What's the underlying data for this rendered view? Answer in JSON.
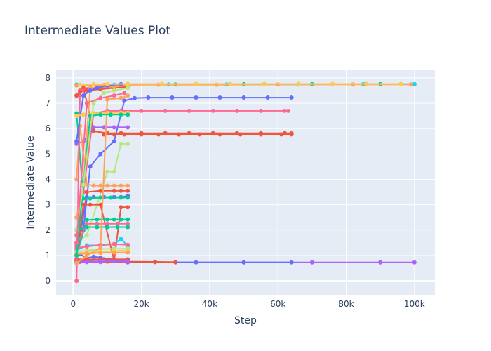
{
  "chart_data": {
    "type": "line",
    "title": "Intermediate Values Plot",
    "xlabel": "Step",
    "ylabel": "Intermediate Value",
    "xlim": [
      -5000,
      106000
    ],
    "ylim": [
      -0.55,
      8.3
    ],
    "x_ticks": [
      0,
      20000,
      40000,
      60000,
      80000,
      100000
    ],
    "x_tick_labels": [
      "0",
      "20k",
      "40k",
      "60k",
      "80k",
      "100k"
    ],
    "y_ticks": [
      0,
      1,
      2,
      3,
      4,
      5,
      6,
      7,
      8
    ],
    "y_tick_labels": [
      "0",
      "1",
      "2",
      "3",
      "4",
      "5",
      "6",
      "7",
      "8"
    ],
    "grid": true,
    "legend": "none",
    "series": [
      {
        "color": "#00cc96",
        "x": [
          1000,
          10000,
          30000,
          50000,
          70000,
          90000,
          100000
        ],
        "y": [
          7.73,
          7.74,
          7.74,
          7.75,
          7.75,
          7.75,
          7.75
        ]
      },
      {
        "color": "#19d3f3",
        "x": [
          1000,
          12000,
          28000,
          45000,
          66000,
          85000,
          100000
        ],
        "y": [
          7.72,
          7.73,
          7.74,
          7.74,
          7.74,
          7.75,
          7.75
        ]
      },
      {
        "color": "#FFA15A",
        "x": [
          1000,
          9000,
          25000,
          42000,
          60000,
          82000,
          99000
        ],
        "y": [
          7.7,
          7.72,
          7.73,
          7.73,
          7.74,
          7.74,
          7.74
        ]
      },
      {
        "color": "#ab63fa",
        "x": [
          1000,
          2000,
          4000,
          8000,
          16000,
          30000,
          50000,
          70000,
          90000,
          100000
        ],
        "y": [
          0.8,
          0.75,
          0.74,
          0.74,
          0.73,
          0.73,
          0.73,
          0.73,
          0.73,
          0.73
        ]
      },
      {
        "color": "#636efa",
        "x": [
          1000,
          2000,
          4000,
          6000,
          8000,
          16000,
          24000,
          36000,
          50000,
          64000
        ],
        "y": [
          1.0,
          1.05,
          0.9,
          0.95,
          0.92,
          0.75,
          0.74,
          0.73,
          0.73,
          0.73
        ]
      },
      {
        "color": "#EF553B",
        "x": [
          1000,
          4000,
          10000,
          16000,
          24000,
          30000
        ],
        "y": [
          0.8,
          0.78,
          0.76,
          0.76,
          0.75,
          0.74
        ]
      },
      {
        "color": "#636efa",
        "x": [
          1000,
          3000,
          5000,
          8000,
          12000,
          15000,
          18000,
          22000,
          29000,
          36000,
          43000,
          50000,
          57000,
          64000
        ],
        "y": [
          1.0,
          2.0,
          4.5,
          5.0,
          5.5,
          7.1,
          7.2,
          7.22,
          7.22,
          7.22,
          7.22,
          7.22,
          7.22,
          7.22
        ]
      },
      {
        "color": "#FF6692",
        "x": [
          1000,
          3000,
          6000,
          10000,
          14000,
          20000,
          27000,
          34000,
          41000,
          48000,
          55000,
          62000,
          63000
        ],
        "y": [
          1.8,
          3.5,
          6.6,
          6.7,
          6.7,
          6.7,
          6.7,
          6.7,
          6.7,
          6.7,
          6.7,
          6.7,
          6.7
        ]
      },
      {
        "color": "#EF553B",
        "x": [
          1000,
          3000,
          6000,
          10000,
          14000,
          20000,
          27000,
          34000,
          41000,
          48000,
          55000,
          62000,
          64000
        ],
        "y": [
          7.3,
          7.6,
          5.9,
          5.82,
          5.82,
          5.82,
          5.82,
          5.82,
          5.82,
          5.82,
          5.82,
          5.82,
          5.82
        ]
      },
      {
        "color": "#EF553B",
        "x": [
          9000,
          12000,
          15000,
          20000,
          25000,
          31000,
          37000,
          43000,
          49000,
          55000,
          61000,
          64000
        ],
        "y": [
          5.77,
          5.77,
          5.77,
          5.77,
          5.77,
          5.77,
          5.77,
          5.77,
          5.77,
          5.77,
          5.77,
          5.77
        ]
      },
      {
        "color": "#ab63fa",
        "x": [
          1000,
          3000,
          6000,
          9000,
          12000,
          16000
        ],
        "y": [
          5.4,
          5.5,
          6.05,
          6.05,
          6.05,
          6.05
        ]
      },
      {
        "color": "#B6E880",
        "x": [
          1000,
          4000,
          7000,
          10000,
          12000,
          14000,
          16000
        ],
        "y": [
          1.5,
          1.8,
          3.0,
          4.3,
          4.3,
          5.4,
          5.4
        ]
      },
      {
        "color": "#FFA15A",
        "x": [
          1000,
          2000,
          4000,
          6000,
          8000,
          10000,
          12000,
          14000,
          16000
        ],
        "y": [
          4.0,
          6.1,
          3.8,
          3.75,
          3.75,
          3.75,
          3.75,
          3.75,
          3.75
        ]
      },
      {
        "color": "#EF553B",
        "x": [
          1000,
          4000,
          8000,
          12000,
          14000,
          16000
        ],
        "y": [
          0.8,
          3.5,
          3.55,
          3.55,
          3.55,
          3.55
        ]
      },
      {
        "color": "#636efa",
        "x": [
          1000,
          4000,
          6000,
          9000,
          12000,
          14000,
          16000
        ],
        "y": [
          1.1,
          3.3,
          3.3,
          3.3,
          3.3,
          3.3,
          3.35
        ]
      },
      {
        "color": "#00cc96",
        "x": [
          1000,
          3000,
          5000,
          8000,
          11000,
          14000,
          16000
        ],
        "y": [
          6.6,
          3.25,
          3.25,
          3.28,
          3.28,
          3.28,
          3.28
        ]
      },
      {
        "color": "#EF553B",
        "x": [
          1000,
          3000,
          5000,
          8000,
          12000,
          14000,
          16000
        ],
        "y": [
          0.8,
          3.0,
          3.0,
          3.0,
          0.8,
          2.9,
          2.9
        ]
      },
      {
        "color": "#00cc96",
        "x": [
          1000,
          4000,
          7000,
          10000,
          12000,
          14000,
          16000
        ],
        "y": [
          1.0,
          2.4,
          2.42,
          2.42,
          2.42,
          2.42,
          2.42
        ]
      },
      {
        "color": "#FF6692",
        "x": [
          1000,
          4000,
          7000,
          10000,
          13000,
          16000
        ],
        "y": [
          1.4,
          2.25,
          2.25,
          2.25,
          2.25,
          2.25
        ]
      },
      {
        "color": "#00cc96",
        "x": [
          1000,
          4000,
          7000,
          10000,
          13000,
          16000
        ],
        "y": [
          2.0,
          2.12,
          2.12,
          2.12,
          2.12,
          2.12
        ]
      },
      {
        "color": "#19d3f3",
        "x": [
          1000,
          4000,
          8000,
          12000,
          14000,
          16000
        ],
        "y": [
          1.2,
          1.4,
          1.4,
          1.45,
          1.65,
          1.38
        ]
      },
      {
        "color": "#FF6692",
        "x": [
          1000,
          4000,
          8000,
          12000,
          16000
        ],
        "y": [
          1.3,
          1.35,
          1.42,
          1.45,
          1.42
        ]
      },
      {
        "color": "#B6E880",
        "x": [
          1000,
          4000,
          8000,
          12000,
          16000
        ],
        "y": [
          1.15,
          1.2,
          1.25,
          1.27,
          1.27
        ]
      },
      {
        "color": "#FECB52",
        "x": [
          1000,
          4000,
          8000,
          12000,
          16000
        ],
        "y": [
          1.1,
          1.12,
          1.15,
          1.18,
          1.2
        ]
      },
      {
        "color": "#FFA15A",
        "x": [
          1000,
          4000,
          8000,
          12000,
          16000
        ],
        "y": [
          1.05,
          1.08,
          1.1,
          1.12,
          1.12
        ]
      },
      {
        "color": "#EF553B",
        "x": [
          1000,
          4000,
          8000,
          12000,
          16000
        ],
        "y": [
          0.85,
          0.85,
          0.85,
          0.85,
          0.85
        ]
      },
      {
        "color": "#ab63fa",
        "x": [
          1000,
          4000,
          8000,
          12000,
          16000
        ],
        "y": [
          0.75,
          0.76,
          0.77,
          0.78,
          0.78
        ]
      },
      {
        "color": "#FF6692",
        "x": [
          1000,
          2000,
          4000,
          8000,
          12000,
          16000
        ],
        "y": [
          0.0,
          7.5,
          7.55,
          7.6,
          7.65,
          7.7
        ]
      },
      {
        "color": "#EF553B",
        "x": [
          1000,
          2000,
          4000,
          8000,
          12000,
          16000
        ],
        "y": [
          7.3,
          7.45,
          7.5,
          7.55,
          7.6,
          7.65
        ]
      },
      {
        "color": "#FFA15A",
        "x": [
          1000,
          3000,
          5000,
          8000,
          12000,
          16000
        ],
        "y": [
          2.5,
          3.8,
          7.6,
          7.65,
          7.65,
          7.7
        ]
      },
      {
        "color": "#636efa",
        "x": [
          1000,
          3000,
          5000,
          7000,
          10000,
          14000
        ],
        "y": [
          5.5,
          7.3,
          7.5,
          7.6,
          7.7,
          7.75
        ]
      },
      {
        "color": "#FFA15A",
        "x": [
          1000,
          4000,
          8000,
          10000,
          14000,
          16000
        ],
        "y": [
          0.7,
          1.0,
          1.3,
          7.15,
          7.2,
          7.3
        ]
      },
      {
        "color": "#FECB52",
        "x": [
          1000,
          3000,
          6000,
          10000,
          14000,
          16000
        ],
        "y": [
          6.5,
          6.55,
          6.6,
          6.62,
          6.62,
          6.62
        ]
      },
      {
        "color": "#00cc96",
        "x": [
          1000,
          5000,
          8000,
          11000,
          14000,
          16000
        ],
        "y": [
          1.0,
          6.5,
          6.55,
          6.55,
          6.55,
          6.55
        ]
      },
      {
        "color": "#B6E880",
        "x": [
          1000,
          3000,
          6000,
          9000,
          12000,
          16000
        ],
        "y": [
          2.0,
          3.8,
          7.0,
          7.4,
          7.5,
          7.6
        ]
      },
      {
        "color": "#FECB52",
        "x": [
          2000,
          6000,
          10000,
          16000,
          26000,
          36000,
          46000,
          56000,
          66000,
          76000,
          86000,
          96000
        ],
        "y": [
          7.73,
          7.75,
          7.75,
          7.76,
          7.76,
          7.76,
          7.76,
          7.76,
          7.76,
          7.76,
          7.76,
          7.76
        ]
      },
      {
        "color": "#FF6692",
        "x": [
          1000,
          4000,
          8000,
          12000,
          15000
        ],
        "y": [
          1.5,
          7.0,
          7.2,
          7.3,
          7.4
        ]
      }
    ]
  }
}
